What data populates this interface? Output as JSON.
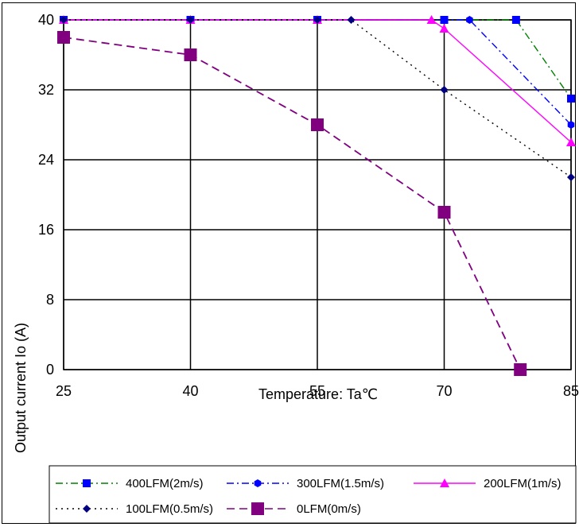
{
  "chart_data": {
    "type": "line",
    "xlabel": "Temperature: Ta℃",
    "ylabel": "Output current Io (A)",
    "x_ticks": [
      "25",
      "40",
      "55",
      "70",
      "85"
    ],
    "y_ticks": [
      "0",
      "8",
      "16",
      "24",
      "32",
      "40"
    ],
    "xlim": [
      25,
      85
    ],
    "ylim": [
      0,
      40
    ],
    "grid": true,
    "legend_position": "bottom",
    "series": [
      {
        "name": "400LFM(2m/s)",
        "color": "#008000",
        "marker_color": "#0000ff",
        "marker": "square",
        "dash": "dashdot",
        "x": [
          25,
          40,
          55,
          70,
          78.5,
          85
        ],
        "y": [
          40,
          40,
          40,
          40,
          40,
          31
        ]
      },
      {
        "name": "300LFM(1.5m/s)",
        "color": "#0000ff",
        "marker_color": "#0000ff",
        "marker": "hexagon",
        "dash": "dashdot",
        "x": [
          25,
          40,
          55,
          70,
          73,
          85
        ],
        "y": [
          40,
          40,
          40,
          40,
          40,
          28
        ]
      },
      {
        "name": "200LFM(1m/s)",
        "color": "#ff00ff",
        "marker_color": "#ff00ff",
        "marker": "triangle",
        "dash": "solid",
        "x": [
          25,
          40,
          55,
          68.5,
          70,
          85
        ],
        "y": [
          40,
          40,
          40,
          40,
          39,
          26
        ]
      },
      {
        "name": "100LFM(0.5m/s)",
        "color": "#000000",
        "marker_color": "#000080",
        "marker": "diamond",
        "dash": "dotted",
        "x": [
          25,
          40,
          55,
          59,
          70,
          85
        ],
        "y": [
          40,
          40,
          40,
          40,
          32,
          22
        ]
      },
      {
        "name": "0LFM(0m/s)",
        "color": "#800080",
        "marker_color": "#800080",
        "marker": "bigsquare",
        "dash": "dashed",
        "x": [
          25,
          40,
          55,
          70,
          79
        ],
        "y": [
          38,
          36,
          28,
          18,
          0
        ]
      }
    ]
  }
}
